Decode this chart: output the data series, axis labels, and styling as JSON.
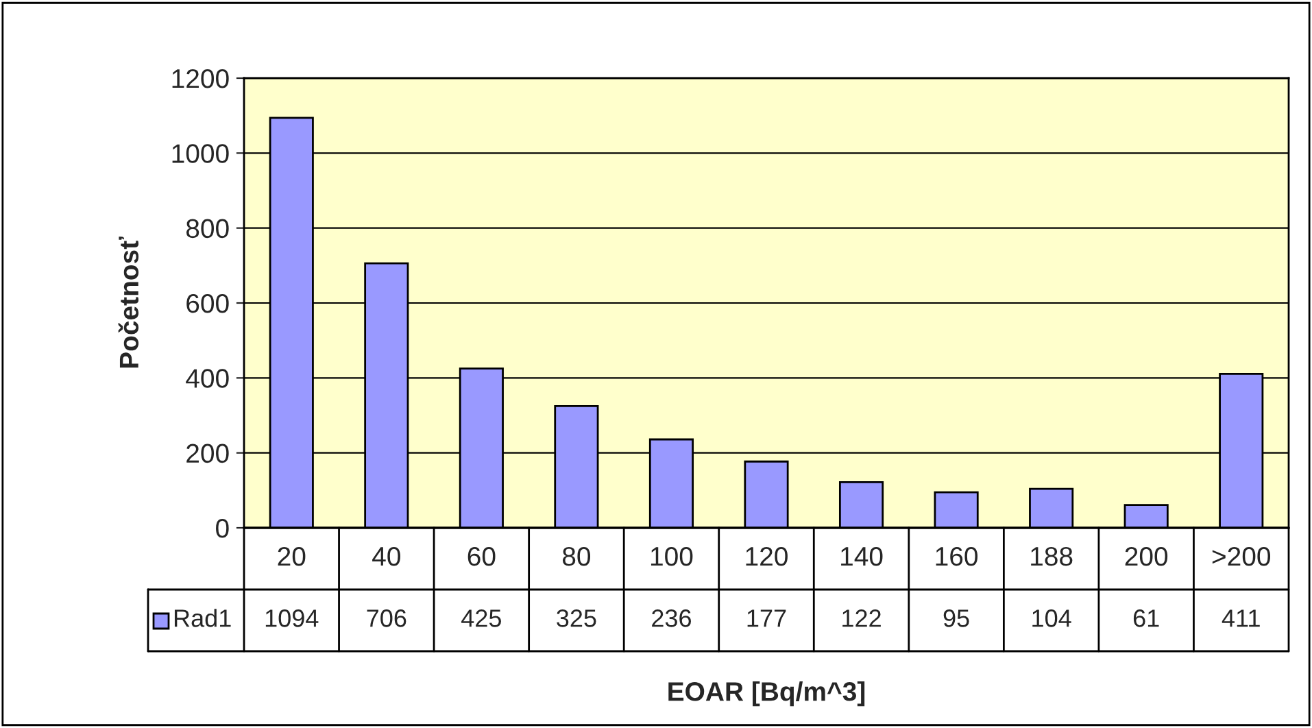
{
  "chart_data": {
    "type": "bar",
    "xlabel": "EOAR [Bq/m^3]",
    "ylabel": "Početnosť",
    "categories": [
      "20",
      "40",
      "60",
      "80",
      "100",
      "120",
      "140",
      "160",
      "188",
      "200",
      ">200"
    ],
    "series": [
      {
        "name": "Rad1",
        "color": "#9999ff",
        "values": [
          1094,
          706,
          425,
          325,
          236,
          177,
          122,
          95,
          104,
          61,
          411
        ]
      }
    ],
    "ylim": [
      0,
      1200
    ],
    "yticks": [
      0,
      200,
      400,
      600,
      800,
      1000,
      1200
    ],
    "grid": "y",
    "data_labels": true
  }
}
